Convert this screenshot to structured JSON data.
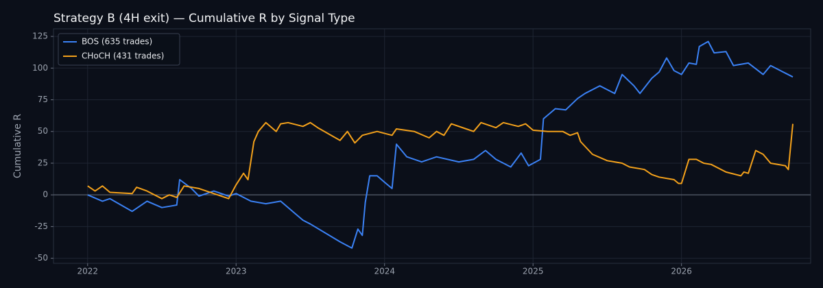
{
  "chart_data": {
    "type": "line",
    "title": "Strategy B (4H exit) — Cumulative R by Signal Type",
    "y_label": "Cumulative R",
    "xlim": [
      2021.77,
      2026.87
    ],
    "xticks": [
      2022,
      2023,
      2024,
      2025,
      2026
    ],
    "ylim": [
      -54,
      131
    ],
    "yticks": [
      -50,
      -25,
      0,
      25,
      50,
      75,
      100,
      125
    ],
    "grid": true,
    "legend": "upper-left",
    "zero_line": true,
    "series": [
      {
        "name": "BOS (635 trades)",
        "color": "#3b82f6",
        "x": [
          2022.0,
          2022.1,
          2022.15,
          2022.3,
          2022.4,
          2022.5,
          2022.6,
          2022.62,
          2022.7,
          2022.75,
          2022.85,
          2022.95,
          2023.0,
          2023.1,
          2023.2,
          2023.3,
          2023.4,
          2023.45,
          2023.5,
          2023.6,
          2023.7,
          2023.78,
          2023.82,
          2023.85,
          2023.87,
          2023.9,
          2023.95,
          2024.0,
          2024.05,
          2024.08,
          2024.15,
          2024.25,
          2024.35,
          2024.5,
          2024.6,
          2024.68,
          2024.75,
          2024.85,
          2024.92,
          2024.97,
          2025.05,
          2025.07,
          2025.15,
          2025.22,
          2025.3,
          2025.35,
          2025.45,
          2025.55,
          2025.6,
          2025.68,
          2025.72,
          2025.8,
          2025.85,
          2025.9,
          2025.95,
          2026.0,
          2026.05,
          2026.1,
          2026.12,
          2026.18,
          2026.22,
          2026.3,
          2026.35,
          2026.45,
          2026.55,
          2026.6,
          2026.7,
          2026.75
        ],
        "values": [
          0,
          -5,
          -3,
          -13,
          -5,
          -10,
          -8,
          12,
          5,
          -1,
          3,
          -1,
          1,
          -5,
          -7,
          -5,
          -15,
          -20,
          -23,
          -30,
          -37,
          -42,
          -27,
          -32,
          -6,
          15,
          15,
          10,
          5,
          40,
          30,
          26,
          30,
          26,
          28,
          35,
          28,
          22,
          33,
          23,
          28,
          60,
          68,
          67,
          76,
          80,
          86,
          80,
          95,
          86,
          80,
          92,
          97,
          108,
          98,
          95,
          104,
          103,
          117,
          121,
          112,
          113,
          102,
          104,
          95,
          102,
          96,
          93
        ]
      },
      {
        "name": "CHoCH (431 trades)",
        "color": "#f5a21b",
        "x": [
          2022.0,
          2022.05,
          2022.1,
          2022.15,
          2022.3,
          2022.33,
          2022.4,
          2022.5,
          2022.55,
          2022.6,
          2022.65,
          2022.75,
          2022.85,
          2022.95,
          2023.0,
          2023.05,
          2023.08,
          2023.12,
          2023.15,
          2023.2,
          2023.27,
          2023.3,
          2023.35,
          2023.45,
          2023.5,
          2023.55,
          2023.7,
          2023.75,
          2023.8,
          2023.85,
          2023.95,
          2024.05,
          2024.08,
          2024.2,
          2024.3,
          2024.35,
          2024.4,
          2024.45,
          2024.55,
          2024.6,
          2024.65,
          2024.75,
          2024.8,
          2024.9,
          2024.95,
          2025.0,
          2025.1,
          2025.2,
          2025.25,
          2025.3,
          2025.32,
          2025.4,
          2025.5,
          2025.6,
          2025.65,
          2025.75,
          2025.8,
          2025.85,
          2025.95,
          2025.98,
          2026.0,
          2026.05,
          2026.1,
          2026.15,
          2026.2,
          2026.3,
          2026.4,
          2026.42,
          2026.45,
          2026.5,
          2026.55,
          2026.6,
          2026.7,
          2026.72,
          2026.75
        ],
        "values": [
          7,
          3,
          7,
          2,
          1,
          6,
          3,
          -3,
          0,
          -2,
          7,
          5,
          1,
          -3,
          8,
          17,
          12,
          42,
          50,
          57,
          50,
          56,
          57,
          54,
          57,
          53,
          43,
          50,
          41,
          47,
          50,
          47,
          52,
          50,
          45,
          50,
          47,
          56,
          52,
          50,
          57,
          53,
          57,
          54,
          56,
          51,
          50,
          50,
          47,
          49,
          42,
          32,
          27,
          25,
          22,
          20,
          16,
          14,
          12,
          9,
          9,
          28,
          28,
          25,
          24,
          18,
          15,
          18,
          17,
          35,
          32,
          25,
          23,
          20,
          56
        ]
      }
    ]
  }
}
